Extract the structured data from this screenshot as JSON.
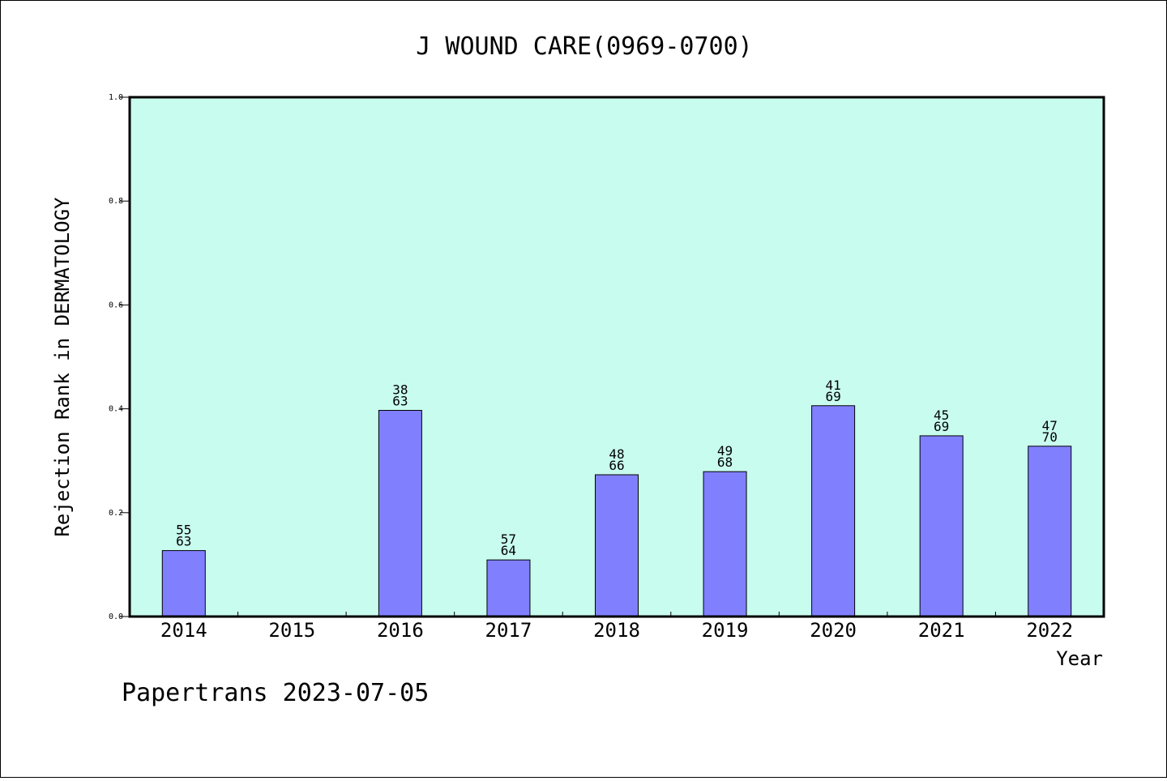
{
  "chart_data": {
    "type": "bar",
    "title": "J WOUND CARE(0969-0700)",
    "xlabel": "Year",
    "ylabel": "Rejection Rank in DERMATOLOGY",
    "footer": "Papertrans 2023-07-05",
    "ylim": [
      0,
      1.0
    ],
    "yticks": [
      "0.0",
      "0.2",
      "0.4",
      "0.6",
      "0.8",
      "1.0"
    ],
    "categories": [
      "2014",
      "2015",
      "2016",
      "2017",
      "2018",
      "2019",
      "2020",
      "2021",
      "2022"
    ],
    "values": [
      0.127,
      null,
      0.397,
      0.109,
      0.273,
      0.279,
      0.406,
      0.348,
      0.328
    ],
    "labels_top": [
      "55",
      "",
      "38",
      "57",
      "48",
      "49",
      "41",
      "45",
      "47"
    ],
    "labels_bottom": [
      "63",
      "",
      "63",
      "64",
      "66",
      "68",
      "69",
      "69",
      "70"
    ],
    "colors": {
      "plot_background": "#c8fcee",
      "bar_fill": "#8080ff",
      "bar_stroke": "#000000"
    },
    "grid": false,
    "legend": "none"
  }
}
